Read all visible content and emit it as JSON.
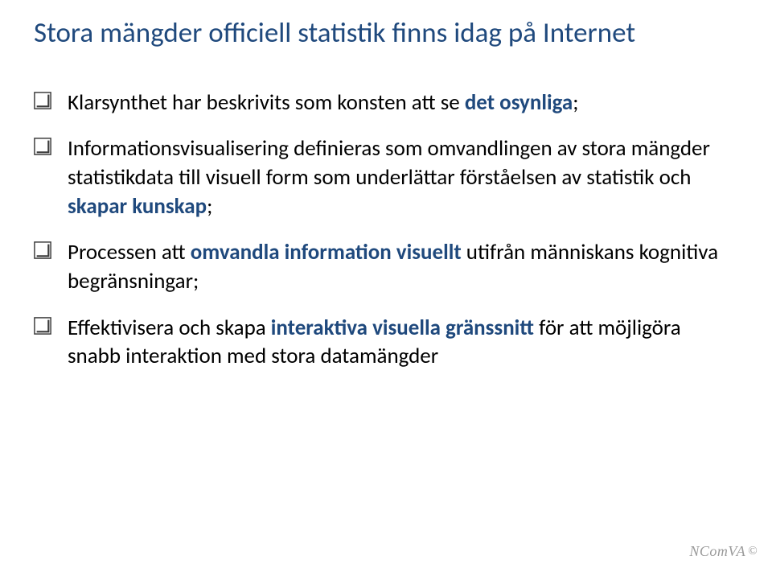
{
  "title": {
    "text": "Stora mängder officiell statistik finns idag på Internet",
    "color": "#1f497d",
    "fontsize": 35
  },
  "bullet_style": {
    "fontsize": 27,
    "color": "#000000",
    "checkbox_size": 22,
    "checkbox_stroke": "#3b3b3b",
    "highlight_color": "#1f497d",
    "highlight_weight": "700"
  },
  "bullets": [
    {
      "segments": [
        {
          "text": "Klarsynthet har beskrivits som konsten att se ",
          "highlight": false
        },
        {
          "text": "det osynliga",
          "highlight": true
        },
        {
          "text": ";",
          "highlight": false
        }
      ]
    },
    {
      "segments": [
        {
          "text": "Informationsvisualisering definieras som omvandlingen av stora mängder statistikdata till visuell form som underlättar förståelsen av statistik och ",
          "highlight": false
        },
        {
          "text": "skapar kunskap",
          "highlight": true
        },
        {
          "text": ";",
          "highlight": false
        }
      ]
    },
    {
      "segments": [
        {
          "text": "Processen att ",
          "highlight": false
        },
        {
          "text": "omvandla information visuellt ",
          "highlight": true
        },
        {
          "text": "utifrån människans kognitiva begränsningar;",
          "highlight": false
        }
      ]
    },
    {
      "segments": [
        {
          "text": "Effektivisera och skapa ",
          "highlight": false
        },
        {
          "text": "interaktiva visuella gränssnitt ",
          "highlight": true
        },
        {
          "text": "för att möjligöra snabb interaktion med stora datamängder",
          "highlight": false
        }
      ]
    }
  ],
  "footer": {
    "text": "NComVA",
    "copyright": "©",
    "color": "#9a9a9a"
  }
}
